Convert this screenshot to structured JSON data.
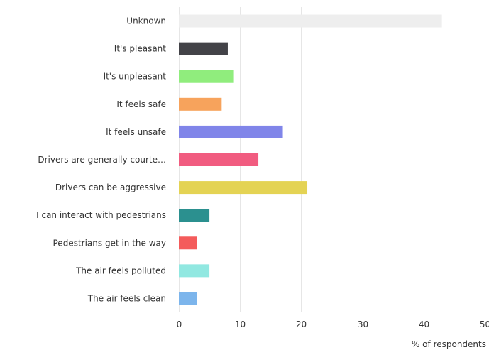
{
  "chart_data": {
    "type": "bar",
    "orientation": "horizontal",
    "categories": [
      "Unknown",
      "It's pleasant",
      "It's unpleasant",
      "It feels safe",
      "It feels unsafe",
      "Drivers are generally courte…",
      "Drivers can be aggressive",
      "I can interact with pedestrians",
      "Pedestrians get in the way",
      "The air feels polluted",
      "The air feels clean"
    ],
    "values": [
      43,
      8,
      9,
      7,
      17,
      13,
      21,
      5,
      3,
      5,
      3
    ],
    "colors": [
      "#eeeeee",
      "#434348",
      "#90ed7d",
      "#f7a35c",
      "#8085e9",
      "#f15c80",
      "#e4d354",
      "#2b908f",
      "#f45b5b",
      "#91e8e1",
      "#7cb5ec"
    ],
    "xlim": [
      0,
      50
    ],
    "xticks": [
      0,
      10,
      20,
      30,
      40,
      50
    ],
    "xlabel": "% of respondents",
    "ylabel": "",
    "title": "",
    "grid": true
  }
}
